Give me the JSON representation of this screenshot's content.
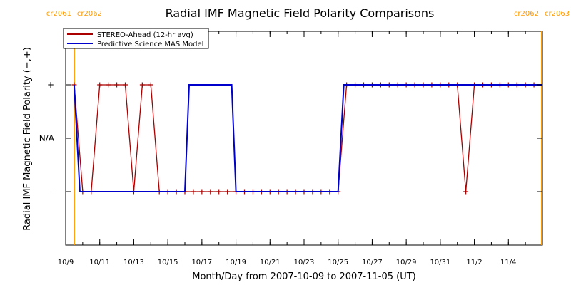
{
  "chart_data": {
    "type": "line",
    "title": "Radial IMF Magnetic Field Polarity Comparisons",
    "xlabel": "Month/Day from 2007-10-09 to 2007-11-05 (UT)",
    "ylabel": "Radial IMF Magnetic Field Polarity (−,+)",
    "x_unit": "date",
    "xlim": [
      "2007-10-09T00:00",
      "2007-11-06T00:00"
    ],
    "x_ticks": [
      {
        "date": "2007-10-09",
        "label": "10/9"
      },
      {
        "date": "2007-10-11",
        "label": "10/11"
      },
      {
        "date": "2007-10-13",
        "label": "10/13"
      },
      {
        "date": "2007-10-15",
        "label": "10/15"
      },
      {
        "date": "2007-10-17",
        "label": "10/17"
      },
      {
        "date": "2007-10-19",
        "label": "10/19"
      },
      {
        "date": "2007-10-21",
        "label": "10/21"
      },
      {
        "date": "2007-10-23",
        "label": "10/23"
      },
      {
        "date": "2007-10-25",
        "label": "10/25"
      },
      {
        "date": "2007-10-27",
        "label": "10/27"
      },
      {
        "date": "2007-10-29",
        "label": "10/29"
      },
      {
        "date": "2007-10-31",
        "label": "10/31"
      },
      {
        "date": "2007-11-02",
        "label": "11/2"
      },
      {
        "date": "2007-11-04",
        "label": "11/4"
      }
    ],
    "ylim": [
      -2,
      2
    ],
    "y_ticks": [
      {
        "value": 1,
        "label": "+"
      },
      {
        "value": 0,
        "label": "N/A"
      },
      {
        "value": -1,
        "label": "–"
      }
    ],
    "carrington_markers": [
      {
        "date": "2007-10-09T12:00",
        "label_left": "cr2061",
        "label_right": "cr2062",
        "color": "#ff9900"
      },
      {
        "date": "2007-11-05T23:00",
        "label_left": "cr2062",
        "label_right": "cr2063",
        "color": "#ff9900"
      }
    ],
    "legend": {
      "placement": "top-left"
    },
    "series": [
      {
        "name": "STEREO-Ahead (12-hr avg)",
        "color": "#aa0000",
        "markers": true,
        "points": [
          [
            "2007-10-09T12:00",
            1
          ],
          [
            "2007-10-10T00:00",
            -1
          ],
          [
            "2007-10-10T12:00",
            -1
          ],
          [
            "2007-10-11T00:00",
            1
          ],
          [
            "2007-10-11T12:00",
            1
          ],
          [
            "2007-10-12T00:00",
            1
          ],
          [
            "2007-10-12T12:00",
            1
          ],
          [
            "2007-10-13T00:00",
            -1
          ],
          [
            "2007-10-13T12:00",
            1
          ],
          [
            "2007-10-14T00:00",
            1
          ],
          [
            "2007-10-14T12:00",
            -1
          ],
          [
            "2007-10-15T00:00",
            -1
          ],
          [
            "2007-10-15T12:00",
            -1
          ],
          [
            "2007-10-16T00:00",
            -1
          ],
          [
            "2007-10-16T12:00",
            -1
          ],
          [
            "2007-10-17T00:00",
            -1
          ],
          [
            "2007-10-17T12:00",
            -1
          ],
          [
            "2007-10-18T00:00",
            -1
          ],
          [
            "2007-10-18T12:00",
            -1
          ],
          [
            "2007-10-19T00:00",
            -1
          ],
          [
            "2007-10-19T12:00",
            -1
          ],
          [
            "2007-10-20T00:00",
            -1
          ],
          [
            "2007-10-20T12:00",
            -1
          ],
          [
            "2007-10-21T00:00",
            -1
          ],
          [
            "2007-10-21T12:00",
            -1
          ],
          [
            "2007-10-22T00:00",
            -1
          ],
          [
            "2007-10-22T12:00",
            -1
          ],
          [
            "2007-10-23T00:00",
            -1
          ],
          [
            "2007-10-23T12:00",
            -1
          ],
          [
            "2007-10-24T00:00",
            -1
          ],
          [
            "2007-10-24T12:00",
            -1
          ],
          [
            "2007-10-25T00:00",
            -1
          ],
          [
            "2007-10-25T12:00",
            1
          ],
          [
            "2007-10-26T00:00",
            1
          ],
          [
            "2007-10-26T12:00",
            1
          ],
          [
            "2007-10-27T00:00",
            1
          ],
          [
            "2007-10-27T12:00",
            1
          ],
          [
            "2007-10-28T00:00",
            1
          ],
          [
            "2007-10-28T12:00",
            1
          ],
          [
            "2007-10-29T00:00",
            1
          ],
          [
            "2007-10-29T12:00",
            1
          ],
          [
            "2007-10-30T00:00",
            1
          ],
          [
            "2007-10-30T12:00",
            1
          ],
          [
            "2007-10-31T00:00",
            1
          ],
          [
            "2007-10-31T12:00",
            1
          ],
          [
            "2007-11-01T00:00",
            1
          ],
          [
            "2007-11-01T12:00",
            -1
          ],
          [
            "2007-11-02T00:00",
            1
          ],
          [
            "2007-11-02T12:00",
            1
          ],
          [
            "2007-11-03T00:00",
            1
          ],
          [
            "2007-11-03T12:00",
            1
          ],
          [
            "2007-11-04T00:00",
            1
          ],
          [
            "2007-11-04T12:00",
            1
          ],
          [
            "2007-11-05T00:00",
            1
          ],
          [
            "2007-11-05T12:00",
            1
          ]
        ]
      },
      {
        "name": "Predictive Science MAS Model",
        "color": "#0000cc",
        "markers": false,
        "points": [
          [
            "2007-10-09T12:00",
            1
          ],
          [
            "2007-10-09T20:00",
            -1
          ],
          [
            "2007-10-16T00:00",
            -1
          ],
          [
            "2007-10-16T06:00",
            1
          ],
          [
            "2007-10-18T18:00",
            1
          ],
          [
            "2007-10-19T00:00",
            -1
          ],
          [
            "2007-10-25T00:00",
            -1
          ],
          [
            "2007-10-25T08:00",
            1
          ],
          [
            "2007-11-06T00:00",
            1
          ]
        ]
      }
    ]
  }
}
